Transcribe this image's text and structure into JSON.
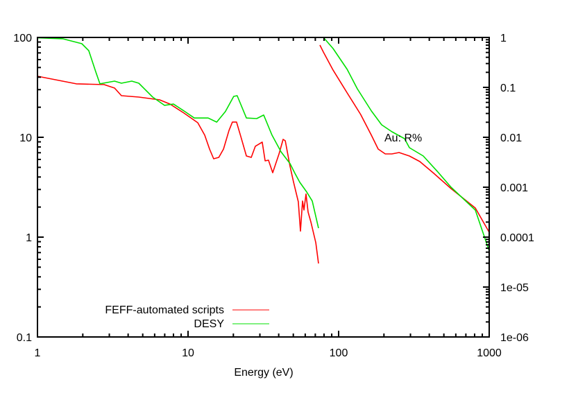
{
  "chart_data": {
    "type": "line",
    "title": "",
    "xlabel": "Energy (eV)",
    "ylabel": "",
    "annotation": "Au: R%",
    "x_scale": "log",
    "xlim": [
      1,
      1000
    ],
    "y_scale": "log",
    "ylim": [
      0.1,
      100
    ],
    "y2_scale": "log",
    "y2lim": [
      1e-06,
      1
    ],
    "x_ticks": [
      {
        "v": 1,
        "label": "1"
      },
      {
        "v": 10,
        "label": "10"
      },
      {
        "v": 100,
        "label": "100"
      },
      {
        "v": 1000,
        "label": "1000"
      }
    ],
    "y_ticks": [
      {
        "v": 0.1,
        "label": "0.1"
      },
      {
        "v": 1,
        "label": "1"
      },
      {
        "v": 10,
        "label": "10"
      },
      {
        "v": 100,
        "label": "100"
      }
    ],
    "y2_ticks": [
      {
        "v": 1e-06,
        "label": "1e-06"
      },
      {
        "v": 1e-05,
        "label": "1e-05"
      },
      {
        "v": 0.0001,
        "label": "0.0001"
      },
      {
        "v": 0.001,
        "label": "0.001"
      },
      {
        "v": 0.01,
        "label": "0.01"
      },
      {
        "v": 0.1,
        "label": "0.1"
      },
      {
        "v": 1,
        "label": "1"
      }
    ],
    "legend_position": "bottom-left",
    "legend": [
      {
        "name": "FEFF-automated scripts",
        "color": "#ff0000"
      },
      {
        "name": "DESY",
        "color": "#00e000"
      }
    ],
    "series": [
      {
        "name": "FEFF-automated scripts",
        "color": "#ff0000",
        "axis": "y",
        "x": [
          1.01,
          1.81,
          2.77,
          3.25,
          3.61,
          4.71,
          6.47,
          7.59,
          9.38,
          11.6,
          12.9,
          13.9,
          14.8,
          16.0,
          17.2,
          18.7,
          19.7,
          21.0,
          22.4,
          24.4,
          26.3,
          28.0,
          29.5,
          31.1,
          32.5,
          34.2,
          36.5,
          40.2,
          42.8,
          44.2,
          47.6,
          50.1,
          54.0,
          55.8,
          57.6,
          58.8,
          60.7,
          62.7,
          65.4,
          70.5,
          73.5
        ],
        "y": [
          40.8,
          34.3,
          33.7,
          31.1,
          26.1,
          25.3,
          23.7,
          21.5,
          17.5,
          14.0,
          10.5,
          7.62,
          6.09,
          6.29,
          7.62,
          11.7,
          14.2,
          14.2,
          10.2,
          6.49,
          6.29,
          8.13,
          8.53,
          8.94,
          5.81,
          5.9,
          4.42,
          6.81,
          9.53,
          9.23,
          5.11,
          3.59,
          2.26,
          1.15,
          2.3,
          1.87,
          2.7,
          1.78,
          1.42,
          0.88,
          0.545
        ]
      },
      {
        "name": "DESY",
        "color": "#00e000",
        "axis": "y",
        "x": [
          1.01,
          1.47,
          1.97,
          2.19,
          2.44,
          2.6,
          3.25,
          3.61,
          4.23,
          4.71,
          5.82,
          6.97,
          8.0,
          9.38,
          11.0,
          13.6,
          15.5,
          17.7,
          20.1,
          21.2,
          24.4,
          28.6,
          31.8,
          36.1,
          41.5,
          47.6,
          51.3,
          55.2,
          61.4,
          66.8,
          73.5
        ],
        "y": [
          99,
          97,
          86.6,
          73.8,
          45.0,
          34.3,
          36.5,
          34.8,
          36.5,
          34.8,
          25.3,
          20.9,
          21.5,
          18.4,
          15.6,
          15.6,
          14.2,
          18.1,
          25.7,
          26.1,
          15.6,
          15.4,
          16.7,
          10.5,
          7.14,
          5.45,
          4.35,
          3.54,
          2.83,
          2.3,
          1.23
        ]
      },
      {
        "name": "FEFF-automated scripts",
        "color": "#ff0000",
        "axis": "y2",
        "x": [
          75.1,
          79.2,
          91.9,
          114,
          140,
          165,
          183,
          204,
          226,
          252,
          295,
          346,
          428,
          558,
          809,
          1000
        ],
        "y": [
          0.703,
          0.511,
          0.222,
          0.0774,
          0.0287,
          0.011,
          0.00581,
          0.00464,
          0.00464,
          0.00495,
          0.00422,
          0.00327,
          0.0019,
          0.000938,
          0.000383,
          0.000125
        ]
      },
      {
        "name": "DESY",
        "color": "#00e000",
        "axis": "y2",
        "x": [
          80.0,
          91.9,
          114,
          133,
          165,
          193,
          226,
          274,
          295,
          365,
          451,
          558,
          809,
          1000
        ],
        "y": [
          0.969,
          0.6,
          0.23,
          0.0938,
          0.0337,
          0.0178,
          0.0129,
          0.00938,
          0.00619,
          0.00422,
          0.00209,
          0.001,
          0.000348,
          5.27e-05
        ]
      }
    ]
  }
}
